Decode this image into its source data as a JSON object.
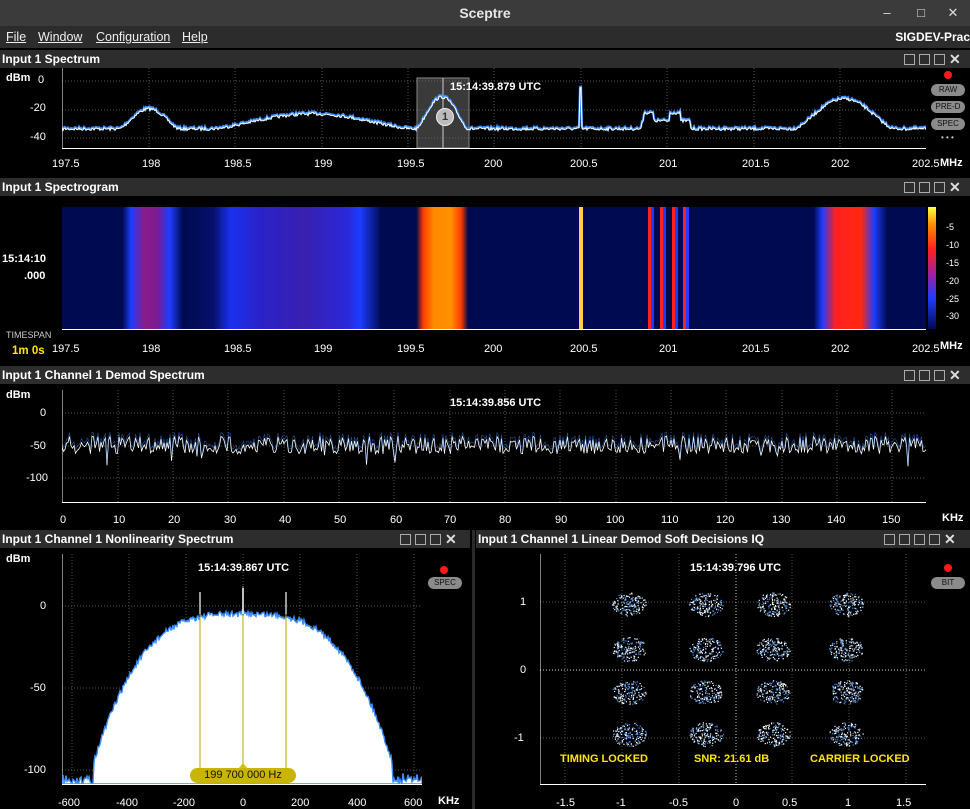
{
  "window": {
    "title": "Sceptre"
  },
  "menu": {
    "items": [
      "File",
      "Window",
      "Configuration",
      "Help"
    ],
    "right_label": "SIGDEV-Prac"
  },
  "spectrum": {
    "title": "Input 1 Spectrum",
    "unit": "dBm",
    "y_ticks": [
      "0",
      "-20",
      "-40"
    ],
    "x_ticks": [
      "197.5",
      "198",
      "198.5",
      "199",
      "199.5",
      "200",
      "200.5",
      "201",
      "201.5",
      "202",
      "202.5"
    ],
    "x_unit": "MHz",
    "timestamp": "15:14:39.879 UTC",
    "marker_label": "1",
    "buttons": [
      "RAW",
      "PRE-D",
      "SPEC"
    ],
    "more_label": "• • •"
  },
  "spectrogram": {
    "title": "Input 1 Spectrogram",
    "time_label_1": "15:14:10",
    "time_label_2": ".000",
    "timespan_label": "TIMESPAN",
    "timespan_value": "1m 0s",
    "x_ticks": [
      "197.5",
      "198",
      "198.5",
      "199",
      "199.5",
      "200",
      "200.5",
      "201",
      "201.5",
      "202",
      "202.5"
    ],
    "x_unit": "MHz",
    "colorbar_ticks": [
      "-5",
      "-10",
      "-15",
      "-20",
      "-25",
      "-30"
    ]
  },
  "demod_spectrum": {
    "title": "Input 1 Channel 1 Demod Spectrum",
    "unit": "dBm",
    "y_ticks": [
      "0",
      "-50",
      "-100"
    ],
    "x_ticks": [
      "0",
      "10",
      "20",
      "30",
      "40",
      "50",
      "60",
      "70",
      "80",
      "90",
      "100",
      "110",
      "120",
      "130",
      "140",
      "150"
    ],
    "x_unit": "KHz",
    "timestamp": "15:14:39.856 UTC"
  },
  "nonlinearity": {
    "title": "Input 1 Channel 1 Nonlinearity Spectrum",
    "unit": "dBm",
    "y_ticks": [
      "0",
      "-50",
      "-100"
    ],
    "x_ticks": [
      "-600",
      "-400",
      "-200",
      "0",
      "200",
      "400",
      "600"
    ],
    "x_unit": "KHz",
    "timestamp": "15:14:39.867 UTC",
    "button": "SPEC",
    "freq_badge": "199 700 000 Hz"
  },
  "iq": {
    "title": "Input 1 Channel 1 Linear Demod Soft Decisions IQ",
    "timestamp": "15:14:39.796 UTC",
    "button": "BIT",
    "y_ticks": [
      "1",
      "0",
      "-1"
    ],
    "x_ticks": [
      "-1.5",
      "-1",
      "-0.5",
      "0",
      "0.5",
      "1",
      "1.5"
    ],
    "status_timing": "TIMING LOCKED",
    "status_snr": "SNR:  21.61 dB",
    "status_carrier": "CARRIER LOCKED"
  },
  "colors": {
    "trace_blue": "#3a8fff",
    "status_yellow": "#ffe600",
    "record_red": "#ff1a1a"
  }
}
